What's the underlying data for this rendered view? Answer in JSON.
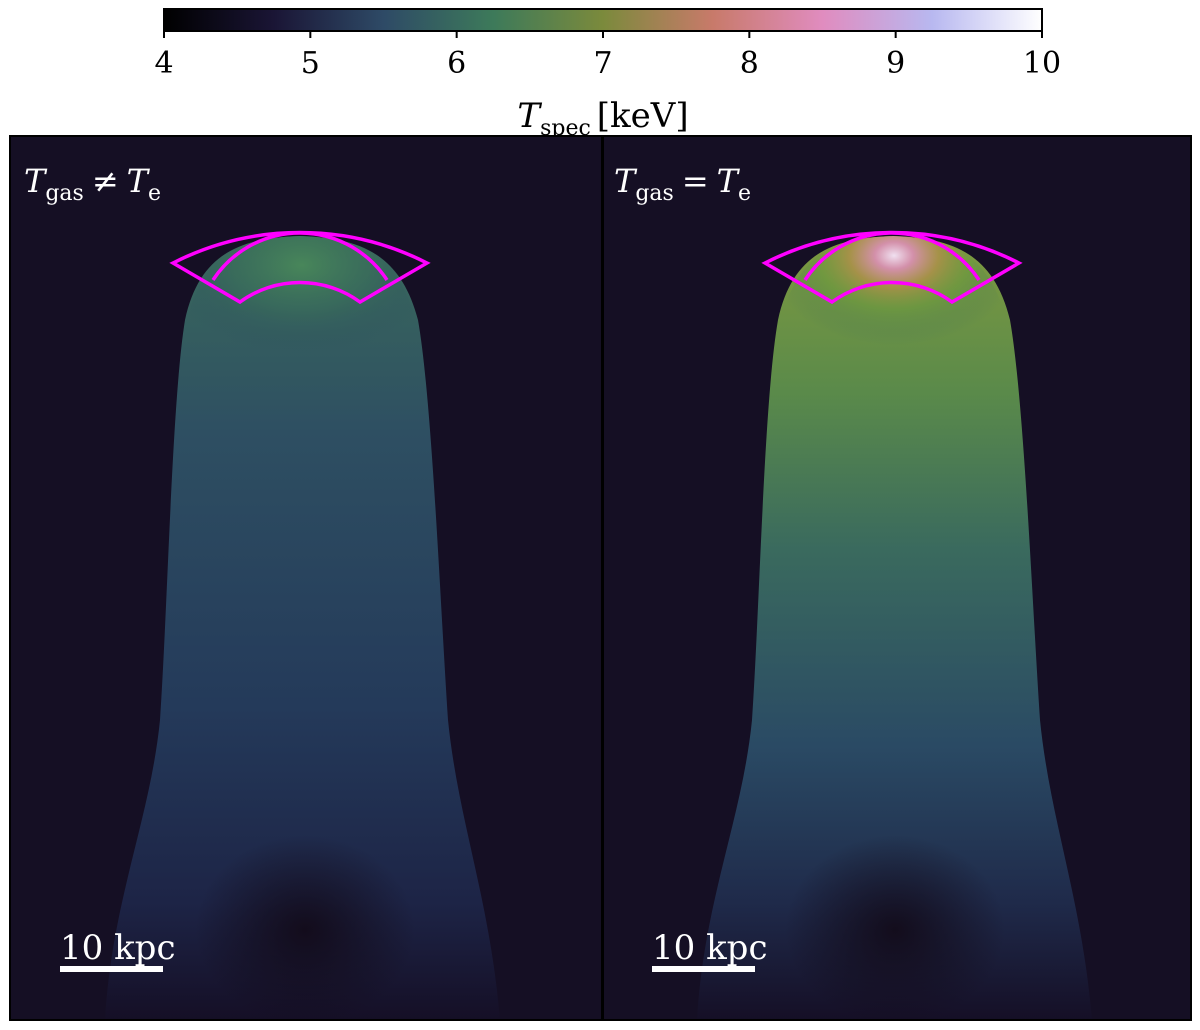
{
  "chart_data": {
    "type": "heatmap",
    "colorbar": {
      "label_main": "T",
      "label_sub": "spec",
      "label_unit": "[keV]",
      "vmin": 4,
      "vmax": 10,
      "ticks": [
        4,
        5,
        6,
        7,
        8,
        9,
        10
      ],
      "colormap_stops": [
        "#000000",
        "#1a1535",
        "#2e4a66",
        "#3d7a5a",
        "#7b8a3c",
        "#c87a6a",
        "#e08cbf",
        "#b8b8f0",
        "#ffffff"
      ]
    },
    "panels": [
      {
        "label_main": "T",
        "label_sub": "gas",
        "label_op": "≠",
        "label_rhs": "T",
        "label_rhs_sub": "e",
        "scale_bar": "10 kpc",
        "peak_temperature_keV": 6.5
      },
      {
        "label_main": "T",
        "label_sub": "gas",
        "label_op": "=",
        "label_rhs": "T",
        "label_rhs_sub": "e",
        "scale_bar": "10 kpc",
        "peak_temperature_keV": 9.5
      }
    ],
    "annotation_color": "#ff00ff",
    "background_temperature_keV": 4.2
  }
}
